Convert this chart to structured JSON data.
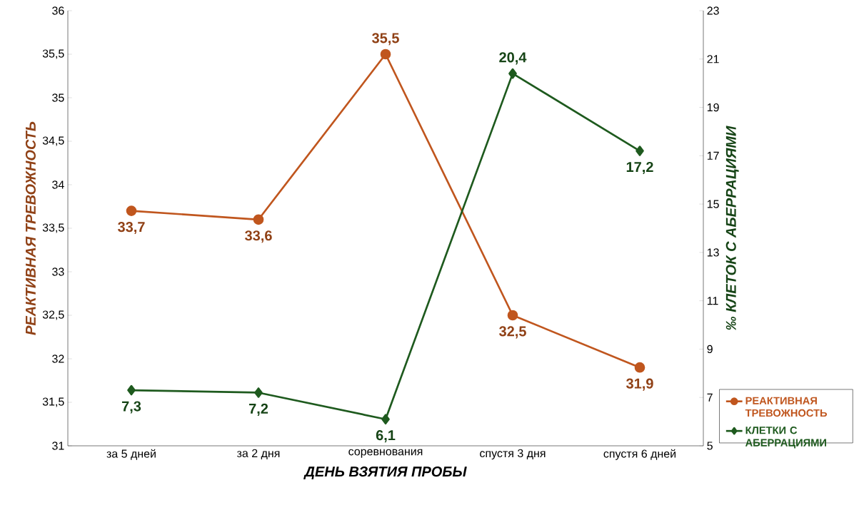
{
  "chart_data": {
    "type": "line",
    "xlabel": "ДЕНЬ ВЗЯТИЯ ПРОБЫ",
    "ylabel": "РЕАКТИВНАЯ ТРЕВОЖНОСТЬ",
    "y2label": "‰ КЛЕТОК С АБЕРРАЦИЯМИ",
    "categories": [
      "за 5 дней",
      "за 2 дня",
      "соревнования",
      "спустя 3 дня",
      "спустя 6 дней"
    ],
    "series": [
      {
        "name": "РЕАКТИВНАЯ ТРЕВОЖНОСТЬ",
        "color": "#c0561e",
        "marker": "circle",
        "values": [
          33.7,
          33.6,
          35.5,
          32.5,
          31.9
        ],
        "value_labels": [
          "33,7",
          "33,6",
          "35,5",
          "32,5",
          "31,9"
        ]
      },
      {
        "name": "КЛЕТКИ С АБЕРРАЦИЯМИ",
        "color": "#1e5a1e",
        "marker": "diamond",
        "axis": "y2",
        "values": [
          7.3,
          7.2,
          6.1,
          20.4,
          17.2
        ],
        "value_labels": [
          "7,3",
          "7,2",
          "6,1",
          "20,4",
          "17,2"
        ]
      }
    ],
    "ylim": [
      31,
      36
    ],
    "yticks": [
      31,
      {
        "value": 31.5,
        "label": "31,5"
      },
      32,
      {
        "value": 32.5,
        "label": "32,5"
      },
      33,
      {
        "value": 33.5,
        "label": "33,5"
      },
      34,
      {
        "value": 34.5,
        "label": "34,5"
      },
      35,
      {
        "value": 35.5,
        "label": "35,5"
      },
      36
    ],
    "y2lim": [
      5,
      23
    ],
    "y2ticks": [
      5,
      7,
      9,
      11,
      13,
      15,
      17,
      19,
      21,
      23
    ],
    "grid": false,
    "legend": "bottom right"
  }
}
